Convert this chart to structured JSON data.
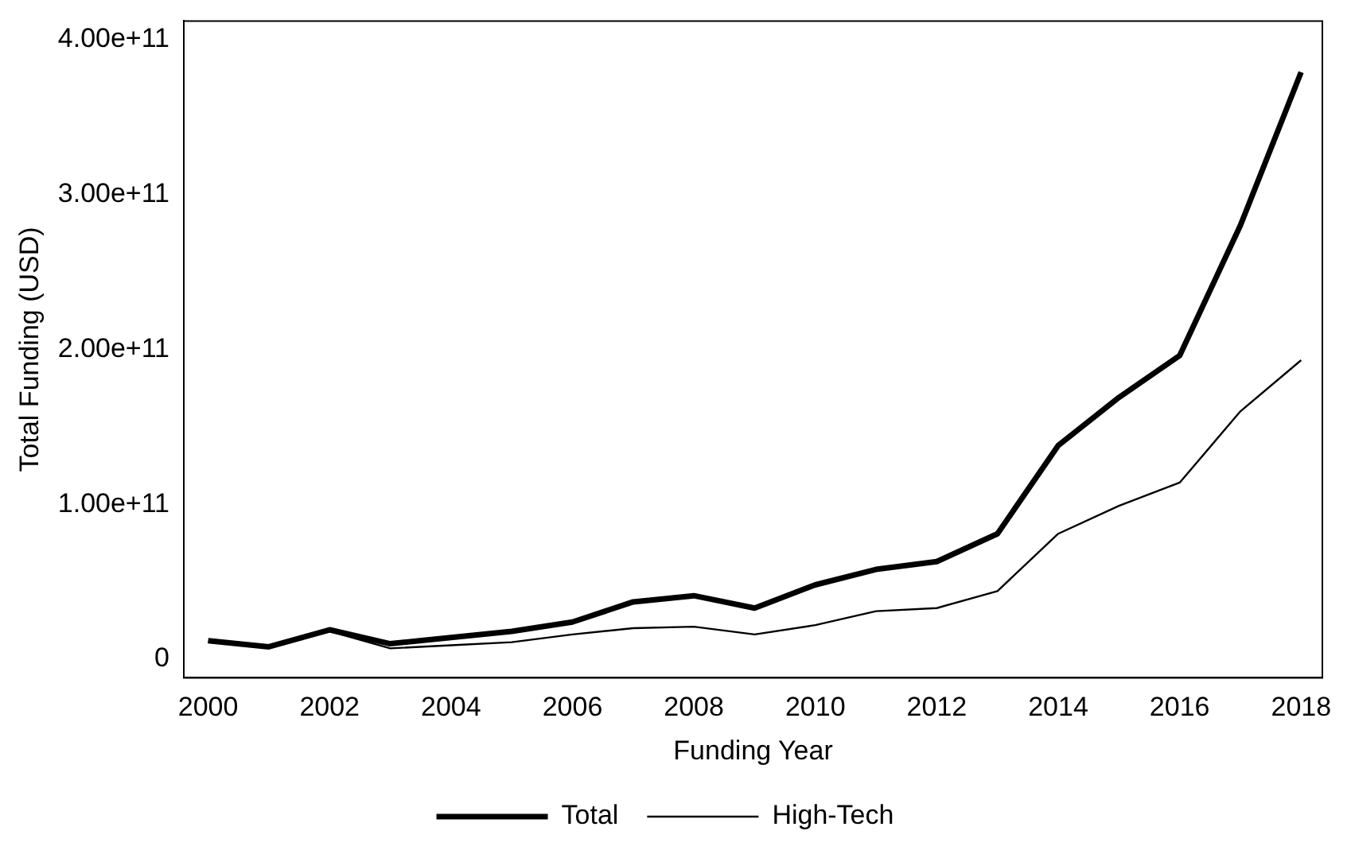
{
  "chart_data": {
    "type": "line",
    "xlabel": "Funding Year",
    "ylabel": "Total Funding (USD)",
    "x": [
      2000,
      2001,
      2002,
      2003,
      2004,
      2005,
      2006,
      2007,
      2008,
      2009,
      2010,
      2011,
      2012,
      2013,
      2014,
      2015,
      2016,
      2017,
      2018
    ],
    "series": [
      {
        "name": "Total",
        "color": "#000000",
        "values": [
          12000000000.0,
          8000000000.0,
          19000000000.0,
          10000000000.0,
          14000000000.0,
          18000000000.0,
          24000000000.0,
          37000000000.0,
          41000000000.0,
          33000000000.0,
          48000000000.0,
          58000000000.0,
          63000000000.0,
          81000000000.0,
          138000000000.0,
          169000000000.0,
          196000000000.0,
          280000000000.0,
          379000000000.0
        ]
      },
      {
        "name": "High-Tech",
        "color": "#000000",
        "values": [
          11000000000.0,
          8000000000.0,
          18000000000.0,
          7000000000.0,
          9000000000.0,
          11000000000.0,
          16000000000.0,
          20000000000.0,
          21000000000.0,
          16000000000.0,
          22000000000.0,
          31000000000.0,
          33000000000.0,
          44000000000.0,
          81000000000.0,
          99000000000.0,
          114000000000.0,
          160000000000.0,
          193000000000.0
        ]
      }
    ],
    "xlim": [
      1999.6,
      2018.35
    ],
    "xticks": [
      2000,
      2002,
      2004,
      2006,
      2008,
      2010,
      2012,
      2014,
      2016,
      2018
    ],
    "ylim": [
      -12000000000.0,
      412000000000.0
    ],
    "yticks": [
      0,
      {
        "value": 100000000000.0,
        "label": "1.00e+11"
      },
      {
        "value": 200000000000.0,
        "label": "2.00e+11"
      },
      {
        "value": 300000000000.0,
        "label": "3.00e+11"
      },
      {
        "value": 400000000000.0,
        "label": "4.00e+11"
      }
    ],
    "grid": false,
    "legend": "bottom",
    "marker": "none",
    "line_style": "solid"
  }
}
